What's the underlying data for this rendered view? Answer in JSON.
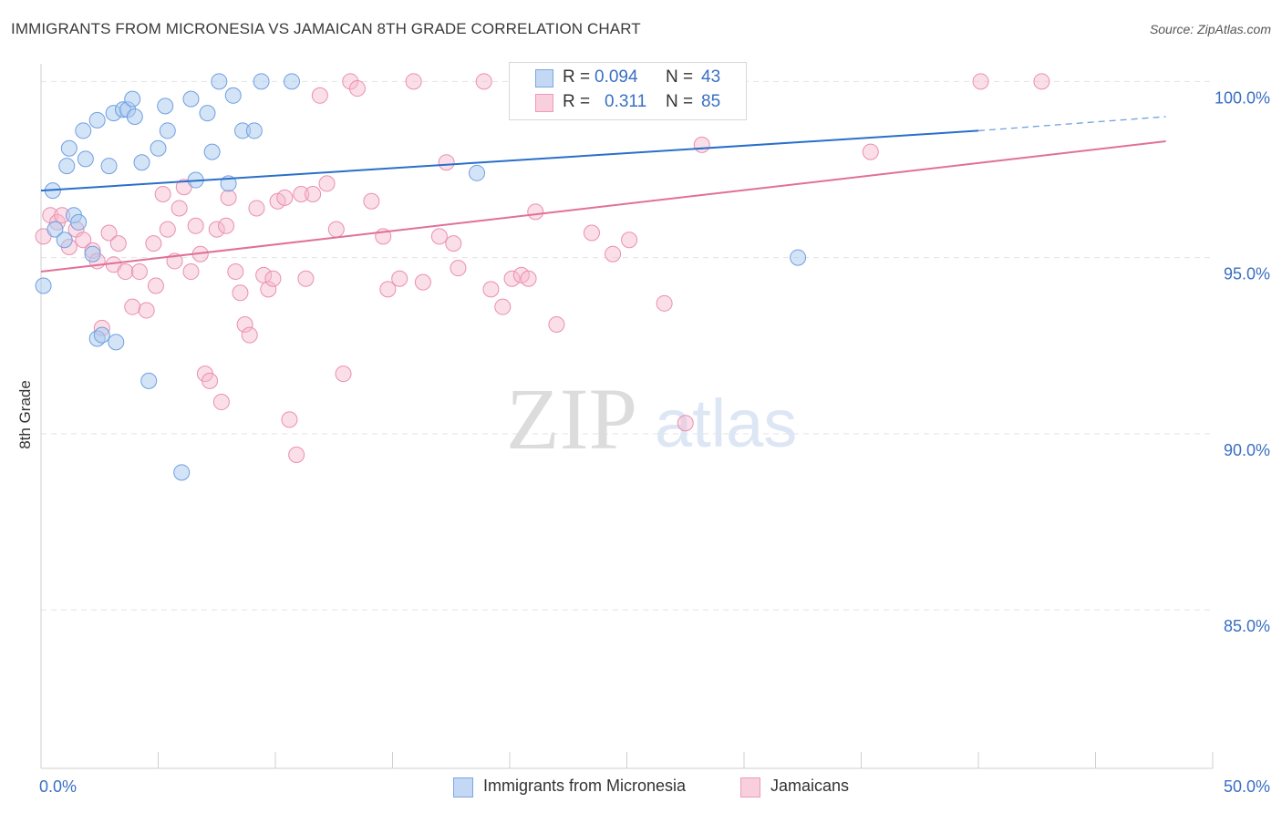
{
  "title": "IMMIGRANTS FROM MICRONESIA VS JAMAICAN 8TH GRADE CORRELATION CHART",
  "source": "Source: ZipAtlas.com",
  "watermark": {
    "zip": "ZIP",
    "atlas": "atlas"
  },
  "colors": {
    "blue_fill": "#a9c9f0",
    "blue_stroke": "#6f9fe0",
    "blue_line": "#2a6fca",
    "pink_fill": "#f6b8cd",
    "pink_stroke": "#ea8fb0",
    "pink_line": "#e0709a",
    "tick_label": "#3a6fc4",
    "grid": "#e3e3e3"
  },
  "legend": {
    "rows": [
      {
        "r_label": "R = ",
        "r_value": "0.094",
        "n_label": "N = ",
        "n_value": "43"
      },
      {
        "r_label": "R = ",
        "r_value": "0.311",
        "n_label": "N = ",
        "n_value": "85"
      }
    ]
  },
  "chart_data": {
    "type": "scatter",
    "title": "IMMIGRANTS FROM MICRONESIA VS JAMAICAN 8TH GRADE CORRELATION CHART",
    "xlabel": "",
    "ylabel": "8th Grade",
    "xlim": [
      0,
      50
    ],
    "ylim": [
      80.5,
      100.5
    ],
    "x_tick_labels": [
      "0.0%",
      "50.0%"
    ],
    "y_ticks": [
      {
        "value": 100,
        "label": "100.0%"
      },
      {
        "value": 95,
        "label": "95.0%"
      },
      {
        "value": 90,
        "label": "90.0%"
      },
      {
        "value": 85,
        "label": "85.0%"
      }
    ],
    "grid": true,
    "series": [
      {
        "name": "Immigrants from Micronesia",
        "R": 0.094,
        "N": 43,
        "trend": {
          "x0": 0,
          "y0": 96.9,
          "x1": 40,
          "y1": 98.6,
          "dashed_to_x": 48,
          "dashed_to_y": 99.0
        },
        "points": [
          [
            0.1,
            94.2
          ],
          [
            0.5,
            96.9
          ],
          [
            0.6,
            95.8
          ],
          [
            1.0,
            95.5
          ],
          [
            1.1,
            97.6
          ],
          [
            1.2,
            98.1
          ],
          [
            1.4,
            96.2
          ],
          [
            1.6,
            96.0
          ],
          [
            1.8,
            98.6
          ],
          [
            1.9,
            97.8
          ],
          [
            2.2,
            95.1
          ],
          [
            2.4,
            98.9
          ],
          [
            2.4,
            92.7
          ],
          [
            2.6,
            92.8
          ],
          [
            2.9,
            97.6
          ],
          [
            3.1,
            99.1
          ],
          [
            3.2,
            92.6
          ],
          [
            3.5,
            99.2
          ],
          [
            3.7,
            99.2
          ],
          [
            3.9,
            99.5
          ],
          [
            4.0,
            99.0
          ],
          [
            4.3,
            97.7
          ],
          [
            4.6,
            91.5
          ],
          [
            5.0,
            98.1
          ],
          [
            5.3,
            99.3
          ],
          [
            5.4,
            98.6
          ],
          [
            6.0,
            88.9
          ],
          [
            6.4,
            99.5
          ],
          [
            6.6,
            97.2
          ],
          [
            7.1,
            99.1
          ],
          [
            7.3,
            98.0
          ],
          [
            7.6,
            100.0
          ],
          [
            8.0,
            97.1
          ],
          [
            8.2,
            99.6
          ],
          [
            8.6,
            98.6
          ],
          [
            9.1,
            98.6
          ],
          [
            9.4,
            100.0
          ],
          [
            10.7,
            100.0
          ],
          [
            18.6,
            97.4
          ],
          [
            32.3,
            95.0
          ]
        ]
      },
      {
        "name": "Jamaicans",
        "R": 0.311,
        "N": 85,
        "trend": {
          "x0": 0,
          "y0": 94.6,
          "x1": 48,
          "y1": 98.3
        },
        "points": [
          [
            0.1,
            95.6
          ],
          [
            0.4,
            96.2
          ],
          [
            0.7,
            96.0
          ],
          [
            0.9,
            96.2
          ],
          [
            1.2,
            95.3
          ],
          [
            1.5,
            95.8
          ],
          [
            1.8,
            95.5
          ],
          [
            2.2,
            95.2
          ],
          [
            2.4,
            94.9
          ],
          [
            2.6,
            93.0
          ],
          [
            2.9,
            95.7
          ],
          [
            3.1,
            94.8
          ],
          [
            3.3,
            95.4
          ],
          [
            3.6,
            94.6
          ],
          [
            3.9,
            93.6
          ],
          [
            4.2,
            94.6
          ],
          [
            4.5,
            93.5
          ],
          [
            4.8,
            95.4
          ],
          [
            4.9,
            94.2
          ],
          [
            5.2,
            96.8
          ],
          [
            5.4,
            95.8
          ],
          [
            5.7,
            94.9
          ],
          [
            5.9,
            96.4
          ],
          [
            6.1,
            97.0
          ],
          [
            6.4,
            94.6
          ],
          [
            6.6,
            95.9
          ],
          [
            6.8,
            95.1
          ],
          [
            7.0,
            91.7
          ],
          [
            7.2,
            91.5
          ],
          [
            7.5,
            95.8
          ],
          [
            7.7,
            90.9
          ],
          [
            7.9,
            95.9
          ],
          [
            8.0,
            96.7
          ],
          [
            8.3,
            94.6
          ],
          [
            8.5,
            94.0
          ],
          [
            8.7,
            93.1
          ],
          [
            8.9,
            92.8
          ],
          [
            9.2,
            96.4
          ],
          [
            9.5,
            94.5
          ],
          [
            9.7,
            94.1
          ],
          [
            9.9,
            94.4
          ],
          [
            10.1,
            96.6
          ],
          [
            10.4,
            96.7
          ],
          [
            10.6,
            90.4
          ],
          [
            10.9,
            89.4
          ],
          [
            11.1,
            96.8
          ],
          [
            11.3,
            94.4
          ],
          [
            11.6,
            96.8
          ],
          [
            11.9,
            99.6
          ],
          [
            12.2,
            97.1
          ],
          [
            12.6,
            95.8
          ],
          [
            12.9,
            91.7
          ],
          [
            13.2,
            100.0
          ],
          [
            13.5,
            99.8
          ],
          [
            14.1,
            96.6
          ],
          [
            14.6,
            95.6
          ],
          [
            14.8,
            94.1
          ],
          [
            15.3,
            94.4
          ],
          [
            15.9,
            100.0
          ],
          [
            16.3,
            94.3
          ],
          [
            17.0,
            95.6
          ],
          [
            17.3,
            97.7
          ],
          [
            17.6,
            95.4
          ],
          [
            17.8,
            94.7
          ],
          [
            18.9,
            100.0
          ],
          [
            19.2,
            94.1
          ],
          [
            19.7,
            93.6
          ],
          [
            20.1,
            94.4
          ],
          [
            20.5,
            94.5
          ],
          [
            20.8,
            94.4
          ],
          [
            21.1,
            96.3
          ],
          [
            22.0,
            93.1
          ],
          [
            23.5,
            95.7
          ],
          [
            24.4,
            95.1
          ],
          [
            25.1,
            95.5
          ],
          [
            26.6,
            93.7
          ],
          [
            27.5,
            90.3
          ],
          [
            27.8,
            100.0
          ],
          [
            28.2,
            98.2
          ],
          [
            35.4,
            98.0
          ],
          [
            40.1,
            100.0
          ],
          [
            42.7,
            100.0
          ]
        ]
      }
    ]
  },
  "bottom_legend": {
    "series1": "Immigrants from Micronesia",
    "series2": "Jamaicans"
  }
}
